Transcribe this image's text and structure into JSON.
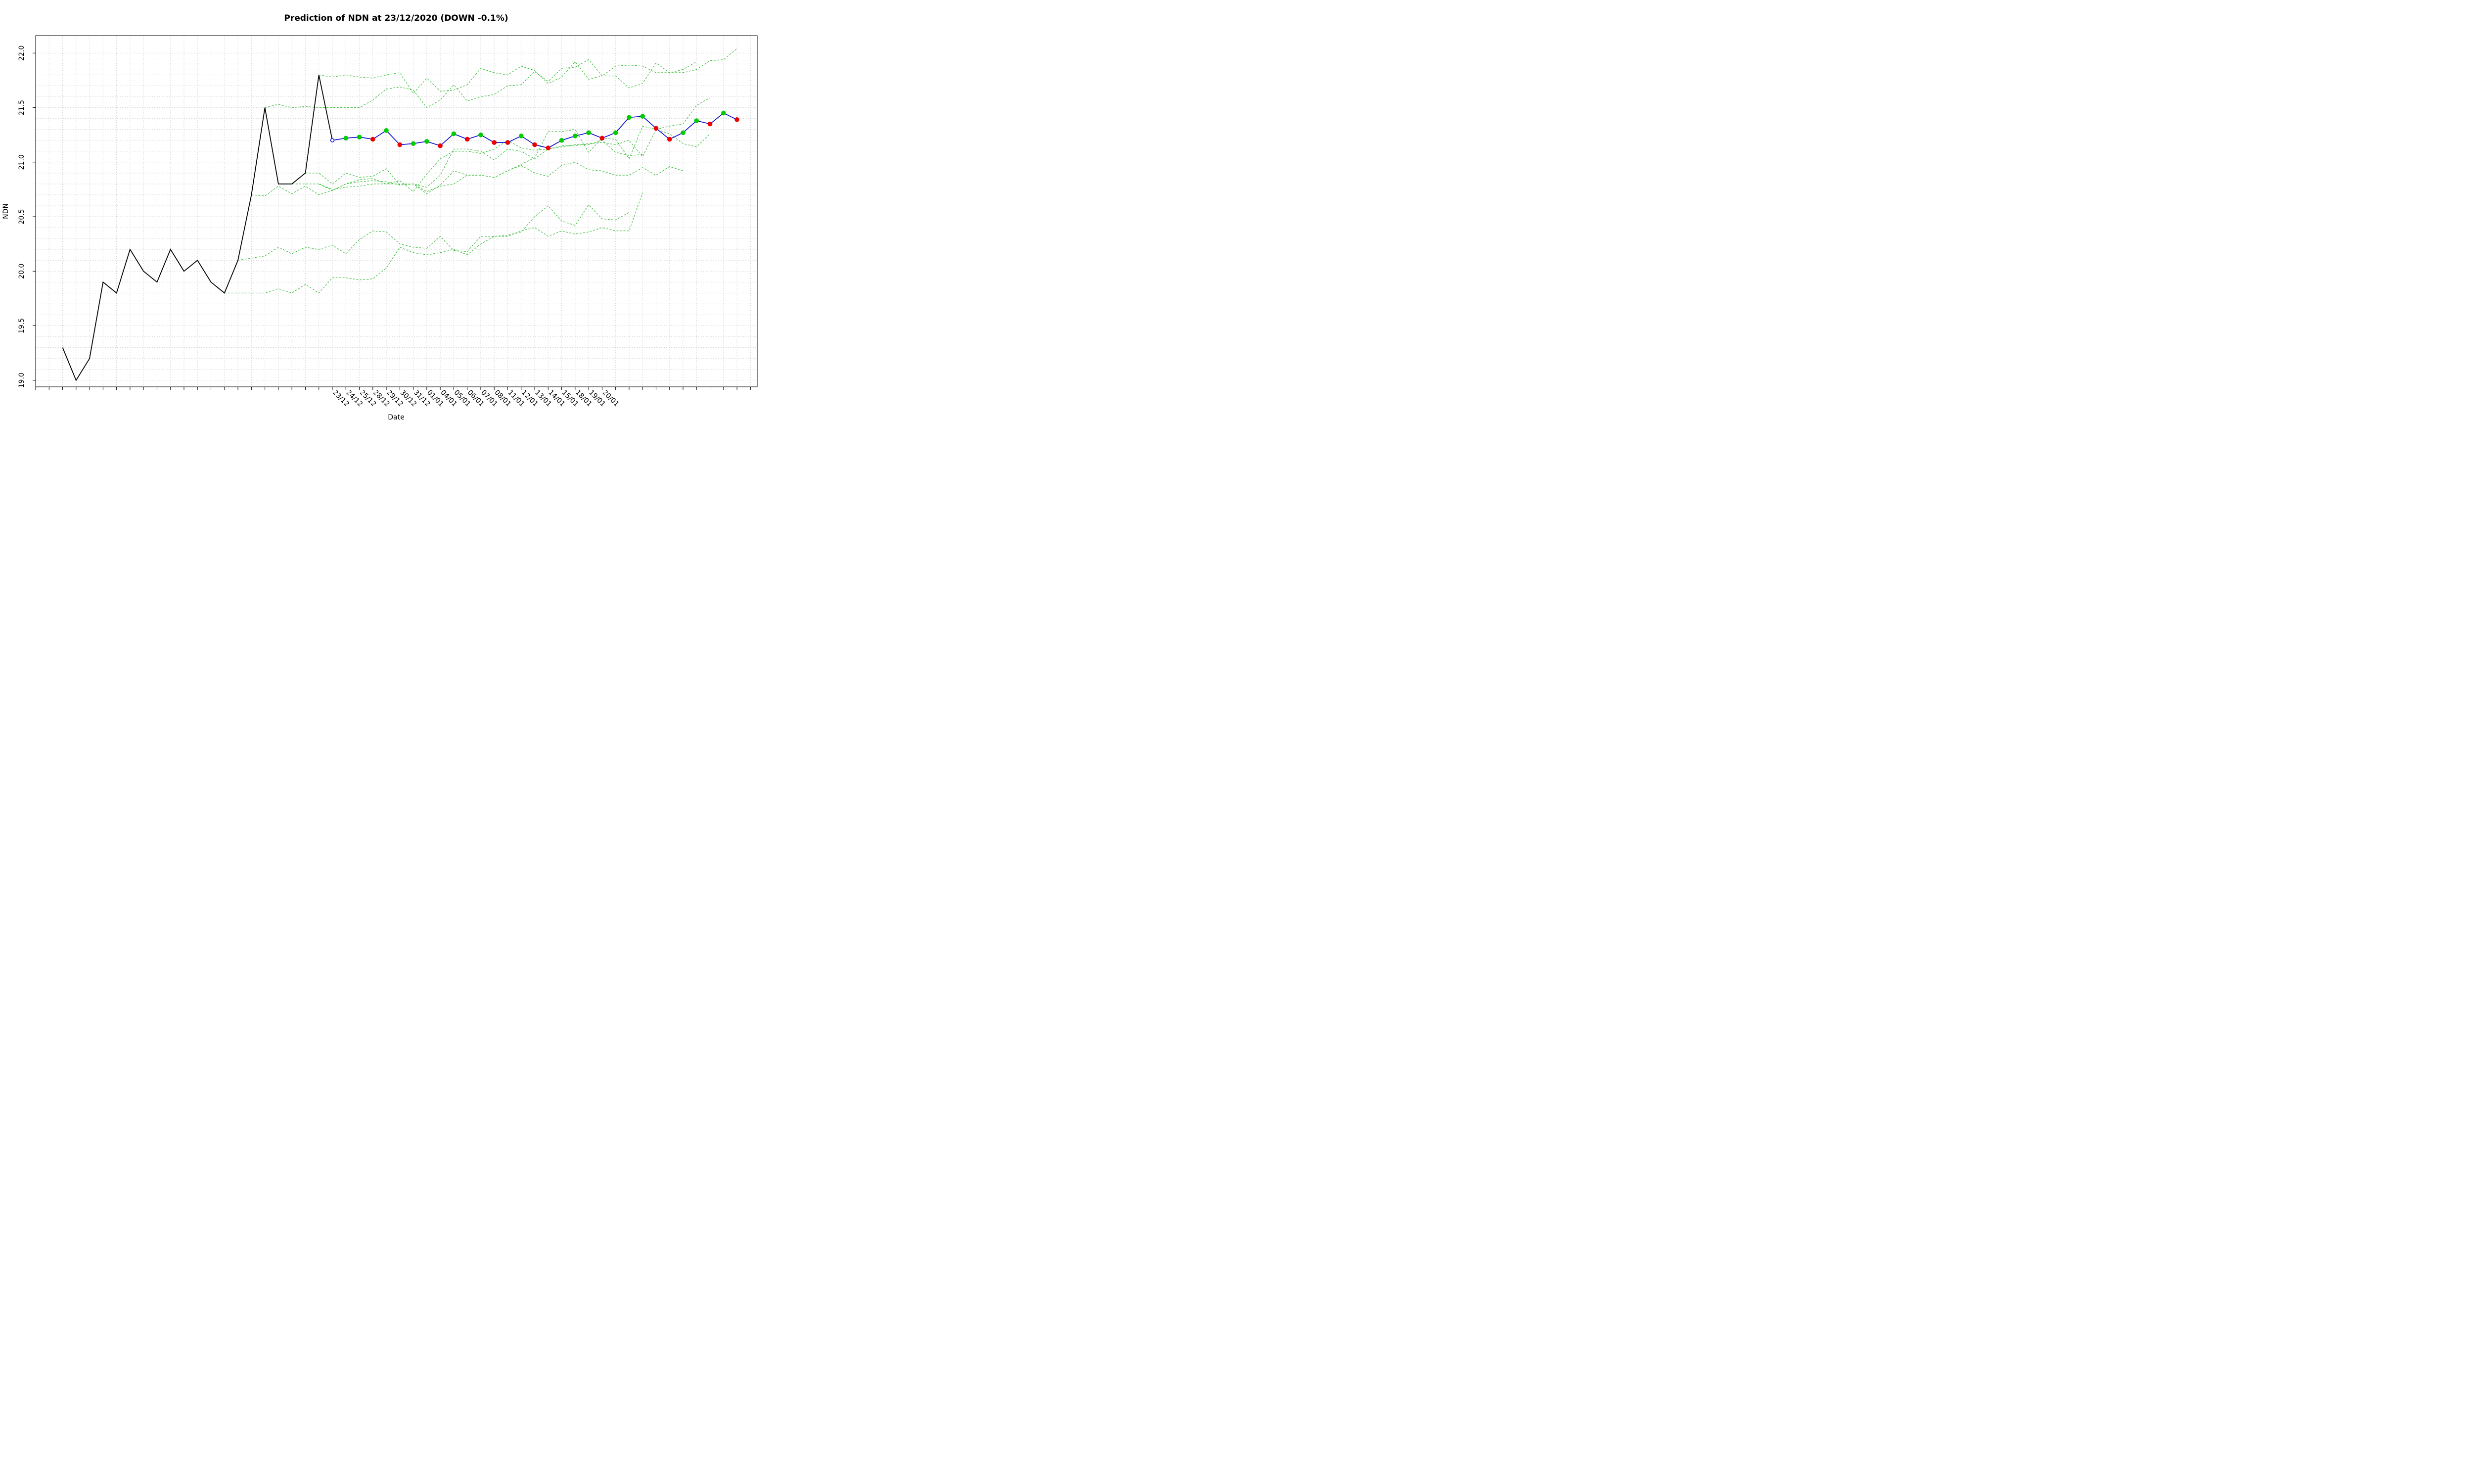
{
  "chart_data": {
    "type": "line",
    "title": "Prediction of NDN at 23/12/2020 (DOWN -0.1%)",
    "xlabel": "Date",
    "ylabel": "NDN",
    "ylim": [
      18.94,
      22.16
    ],
    "yticks": [
      "19.0",
      "19.5",
      "20.0",
      "20.5",
      "21.0",
      "21.5",
      "22.0"
    ],
    "xlim": [
      -2,
      51.5
    ],
    "xtick_labels": [
      "23/12",
      "24/12",
      "25/12",
      "28/12",
      "29/12",
      "30/12",
      "31/12",
      "01/01",
      "04/01",
      "05/01",
      "06/01",
      "07/01",
      "08/01",
      "11/01",
      "12/01",
      "13/01",
      "14/01",
      "15/01",
      "18/01",
      "19/01",
      "20/01"
    ],
    "xtick_start_index": 20,
    "grid": true,
    "colors": {
      "history": "#000000",
      "prediction": "#0000cc",
      "up": "#00cc00",
      "down": "#ee0000",
      "scenario": "#33bb33"
    },
    "history": {
      "name": "",
      "values": [
        19.3,
        19.0,
        19.2,
        19.9,
        19.8,
        20.2,
        20.0,
        19.9,
        20.2,
        20.0,
        20.1,
        19.9,
        19.8,
        20.1,
        20.7,
        21.5,
        20.8,
        20.8,
        20.9,
        21.8,
        21.2
      ]
    },
    "prediction": {
      "name": "",
      "start_index": 20,
      "values": [
        21.2,
        21.22,
        21.23,
        21.21,
        21.29,
        21.16,
        21.17,
        21.19,
        21.15,
        21.26,
        21.21,
        21.25,
        21.18,
        21.18,
        21.24,
        21.16,
        21.13,
        21.2,
        21.24,
        21.27,
        21.22,
        21.27,
        21.41,
        21.42,
        21.31,
        21.21,
        21.27,
        21.38,
        21.35,
        21.45,
        21.39
      ],
      "directions": [
        "start",
        "up",
        "up",
        "down",
        "up",
        "down",
        "up",
        "up",
        "down",
        "up",
        "down",
        "up",
        "down",
        "down",
        "up",
        "down",
        "down",
        "up",
        "up",
        "up",
        "down",
        "up",
        "up",
        "up",
        "down",
        "down",
        "up",
        "up",
        "down",
        "up",
        "down"
      ]
    },
    "scenarios": [
      {
        "start_index": 19,
        "values": [
          21.8,
          21.78,
          21.8,
          21.78,
          21.77,
          21.8,
          21.82,
          21.63,
          21.77,
          21.65,
          21.66,
          21.71,
          21.86,
          21.82,
          21.8,
          21.88,
          21.84,
          21.72,
          21.78,
          21.92,
          21.76,
          21.79,
          21.79,
          21.68,
          21.72,
          21.91,
          21.82,
          21.82,
          21.85,
          21.93,
          21.94,
          22.04
        ]
      },
      {
        "start_index": 15,
        "values": [
          21.5,
          21.53,
          21.5,
          21.51,
          21.5,
          21.5,
          21.5,
          21.5,
          21.57,
          21.67,
          21.69,
          21.66,
          21.5,
          21.57,
          21.71,
          21.56,
          21.6,
          21.62,
          21.7,
          21.71,
          21.83,
          21.74,
          21.86,
          21.87,
          21.94,
          21.79,
          21.88,
          21.89,
          21.88,
          21.82,
          21.82,
          21.85,
          21.92
        ]
      },
      {
        "start_index": 18,
        "values": [
          20.9,
          20.9,
          20.8,
          20.9,
          20.86,
          20.87,
          20.94,
          20.79,
          20.8,
          20.77,
          20.88,
          21.12,
          21.12,
          21.1,
          21.02,
          21.12,
          21.1,
          21.03,
          21.12,
          21.15,
          21.15,
          21.17,
          21.18,
          21.16,
          21.2,
          21.05,
          21.3,
          21.26,
          21.17,
          21.14,
          21.26
        ]
      },
      {
        "start_index": 14,
        "values": [
          20.7,
          20.69,
          20.78,
          20.71,
          20.78,
          20.7,
          20.74,
          20.8,
          20.82,
          20.83,
          20.82,
          20.79,
          20.8,
          20.71,
          20.79,
          20.92,
          20.88,
          20.88,
          20.86,
          20.92,
          20.97,
          20.9,
          20.87,
          20.97,
          21.0,
          20.93,
          20.92,
          20.88,
          20.88,
          20.95,
          20.88,
          20.96,
          20.92
        ]
      },
      {
        "start_index": 16,
        "values": [
          20.8,
          20.8,
          20.8,
          20.8,
          20.75,
          20.77,
          20.78,
          20.8,
          20.8,
          20.8,
          20.8,
          20.73,
          20.78,
          20.8,
          20.88,
          20.88,
          20.86,
          20.92,
          20.98,
          21.04,
          21.28,
          21.28,
          21.3,
          21.09,
          21.22,
          21.21,
          21.03,
          21.33,
          21.3,
          21.33,
          21.35,
          21.52,
          21.59
        ]
      },
      {
        "start_index": 19,
        "values": [
          20.8,
          20.74,
          20.8,
          20.84,
          20.85,
          20.8,
          20.83,
          20.73,
          20.89,
          21.03,
          21.1,
          21.1,
          21.08,
          21.12,
          21.2,
          21.13,
          21.11,
          21.12,
          21.14,
          21.16,
          21.16,
          21.2,
          21.09,
          21.06,
          21.07
        ]
      },
      {
        "start_index": 13,
        "values": [
          20.1,
          20.12,
          20.14,
          20.22,
          20.16,
          20.22,
          20.2,
          20.24,
          20.16,
          20.29,
          20.37,
          20.36,
          20.25,
          20.22,
          20.21,
          20.32,
          20.19,
          20.18,
          20.32,
          20.32,
          20.33,
          20.36,
          20.5,
          20.6,
          20.46,
          20.42,
          20.61,
          20.48,
          20.47,
          20.54
        ]
      },
      {
        "start_index": 12,
        "values": [
          19.8,
          19.8,
          19.8,
          19.8,
          19.84,
          19.8,
          19.88,
          19.8,
          19.94,
          19.94,
          19.92,
          19.93,
          20.03,
          20.22,
          20.17,
          20.15,
          20.17,
          20.2,
          20.15,
          20.25,
          20.32,
          20.32,
          20.37,
          20.4,
          20.32,
          20.37,
          20.34,
          20.36,
          20.4,
          20.37,
          20.37,
          20.72
        ]
      }
    ]
  }
}
